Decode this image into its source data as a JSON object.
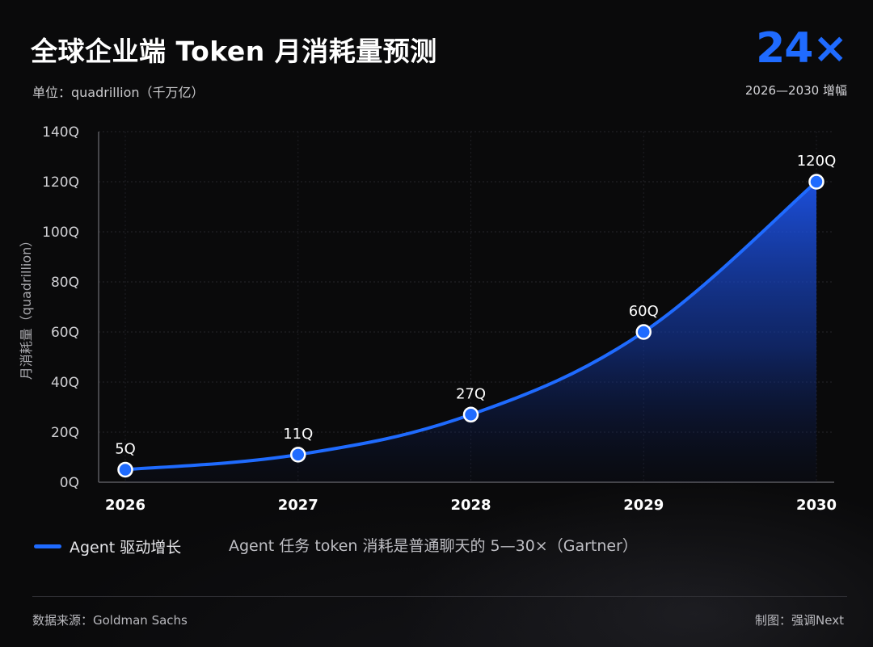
{
  "header": {
    "title": "全球企业端 Token 月消耗量预测",
    "unit": "单位：quadrillion（千万亿）",
    "stat_value": "24×",
    "stat_caption": "2026—2030 增幅"
  },
  "legend": {
    "series_label": "Agent 驱动增长",
    "note": "Agent 任务 token 消耗是普通聊天的 5—30×（Gartner）"
  },
  "footer": {
    "source": "数据来源：Goldman Sachs",
    "credit": "制图：强调Next"
  },
  "colors": {
    "accent": "#1f6bff",
    "background": "#0a0a0b"
  },
  "chart_data": {
    "type": "area",
    "x": [
      "2026",
      "2027",
      "2028",
      "2029",
      "2030"
    ],
    "series": [
      {
        "name": "Agent 驱动增长",
        "values": [
          5,
          11,
          27,
          60,
          120
        ],
        "labels": [
          "5Q",
          "11Q",
          "27Q",
          "60Q",
          "120Q"
        ]
      }
    ],
    "ylabel": "月消耗量（quadrillion）",
    "ylim": [
      0,
      140
    ],
    "yticks": [
      0,
      20,
      40,
      60,
      80,
      100,
      120,
      140
    ],
    "ytick_labels": [
      "0Q",
      "20Q",
      "40Q",
      "60Q",
      "80Q",
      "100Q",
      "120Q",
      "140Q"
    ],
    "grid": true,
    "legend_position": "bottom-left"
  }
}
